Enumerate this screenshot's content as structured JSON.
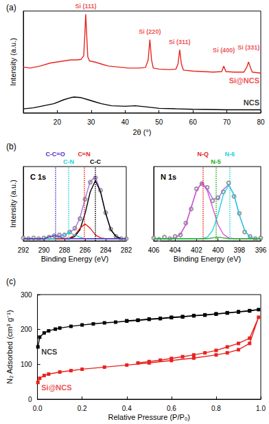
{
  "chart_data": [
    {
      "type": "line",
      "title": "(a)",
      "xlabel": "2θ (°)",
      "ylabel": "Intensity (a.u.)",
      "xlim": [
        10,
        80
      ],
      "xticks": [
        20,
        30,
        40,
        50,
        60,
        70,
        80
      ],
      "ylim": [
        0,
        100
      ],
      "tick_labels": "x",
      "grid": false,
      "series": [
        {
          "name": "Si@NCS",
          "color": "#e8231f",
          "x": [
            10,
            12,
            15,
            18,
            20,
            22,
            24,
            26,
            27,
            27.8,
            28.1,
            28.4,
            28.7,
            29,
            29.5,
            31,
            33,
            35,
            38,
            41,
            44,
            46,
            46.8,
            47.3,
            47.8,
            48.3,
            50,
            53,
            55,
            55.6,
            56.1,
            56.6,
            57.2,
            60,
            63,
            66,
            68.5,
            69.1,
            69.7,
            72,
            75,
            75.9,
            76.4,
            76.9,
            77.5,
            80
          ],
          "values": [
            45,
            44,
            46,
            49,
            50,
            51,
            52,
            52,
            52.5,
            56,
            75,
            97,
            75,
            55,
            51,
            50,
            48,
            46,
            45,
            44,
            44,
            44.5,
            52,
            72,
            52,
            44,
            43,
            42.5,
            43,
            48,
            62,
            48,
            42,
            41,
            40.5,
            40,
            40.5,
            46,
            40.5,
            40,
            40,
            45,
            50,
            45,
            40,
            39
          ]
        },
        {
          "name": "NCS",
          "color": "#000000",
          "x": [
            10,
            13,
            16,
            19,
            22,
            24,
            25,
            27,
            29,
            31,
            33,
            36,
            40,
            43,
            46,
            50,
            55,
            60,
            70,
            80
          ],
          "values": [
            4,
            5,
            7,
            9,
            13,
            15,
            15.5,
            15,
            13,
            11,
            9,
            7,
            6.5,
            7,
            6,
            4.5,
            4,
            3.5,
            3,
            3
          ]
        }
      ],
      "annotations": [
        {
          "text": "Si (111)",
          "x": 28.4,
          "y": 98,
          "color": "#e8231f"
        },
        {
          "text": "Si (220)",
          "x": 47.3,
          "y": 73,
          "color": "#e8231f"
        },
        {
          "text": "Si (311)",
          "x": 56.1,
          "y": 63,
          "color": "#e8231f"
        },
        {
          "text": "Si (400)",
          "x": 69.1,
          "y": 55,
          "color": "#e8231f"
        },
        {
          "text": "Si (331)",
          "x": 76.4,
          "y": 58,
          "color": "#e8231f"
        }
      ]
    },
    {
      "type": "line",
      "title": "(b)",
      "subtitle": "C 1s",
      "xlabel": "Binding Energy (eV)",
      "ylabel": "Intensity (a.u.)",
      "xlim": [
        292,
        282
      ],
      "xticks": [
        292,
        290,
        288,
        286,
        284,
        282
      ],
      "ylim": [
        0,
        100
      ],
      "tick_labels": "x",
      "grid": false,
      "x": [
        292,
        291.5,
        291,
        290.5,
        290,
        289.5,
        289,
        288.5,
        288,
        287.5,
        287,
        286.5,
        286,
        285.5,
        285,
        284.5,
        284,
        283.5,
        283,
        282.5,
        282
      ],
      "series": [
        {
          "type": "scatter",
          "marker": "circle",
          "color": "#808080",
          "values": [
            4,
            3,
            4,
            3,
            4,
            5,
            7,
            8,
            8,
            12,
            17,
            30,
            56,
            79,
            85,
            68,
            38,
            16,
            6,
            3,
            3
          ]
        },
        {
          "type": "line",
          "color": "#a46ee0",
          "values": [
            3,
            3,
            3,
            3,
            3,
            5.5,
            7,
            7.5,
            8,
            12,
            16,
            31,
            57,
            80,
            86,
            67,
            37,
            15,
            6,
            3,
            3
          ]
        },
        {
          "type": "line",
          "color": "#000000",
          "values": [
            3,
            3,
            3,
            3,
            3,
            3,
            3,
            3,
            3,
            3,
            6,
            15,
            37,
            66,
            81,
            66,
            37,
            15,
            6,
            3,
            3
          ]
        },
        {
          "type": "line",
          "color": "#e8231f",
          "values": [
            3,
            3,
            3,
            3,
            3,
            3,
            3,
            3,
            3,
            4,
            8,
            17,
            23,
            17,
            8,
            4,
            3,
            3,
            3,
            3,
            3
          ]
        },
        {
          "type": "line",
          "color": "#22d3e0",
          "values": [
            3,
            3,
            3,
            3,
            3,
            3,
            3,
            5,
            8,
            11,
            8,
            5,
            3,
            3,
            3,
            3,
            3,
            3,
            3,
            3,
            3
          ]
        },
        {
          "type": "line",
          "color": "#5b2fc9",
          "values": [
            3,
            3,
            3,
            3,
            3,
            5.5,
            7,
            5.5,
            3,
            3,
            3,
            3,
            3,
            3,
            3,
            3,
            3,
            3,
            3,
            3,
            3
          ]
        }
      ],
      "markers": [
        {
          "text": "C-C=O",
          "x": 288.9,
          "color": "#5b2fc9"
        },
        {
          "text": "C-N",
          "x": 287.6,
          "color": "#22d3e0"
        },
        {
          "text": "C=N",
          "x": 286.1,
          "color": "#e8231f"
        },
        {
          "text": "C-C",
          "x": 285.0,
          "color": "#000000"
        }
      ]
    },
    {
      "type": "line",
      "subtitle": "N 1s",
      "xlabel": "Binding Energy (eV)",
      "xlim": [
        406,
        396
      ],
      "xticks": [
        406,
        404,
        402,
        400,
        398,
        396
      ],
      "ylim": [
        0,
        100
      ],
      "tick_labels": "x",
      "grid": false,
      "x": [
        406,
        405.5,
        405,
        404.5,
        404,
        403.5,
        403,
        402.5,
        402,
        401.5,
        401,
        400.5,
        400,
        399.5,
        399,
        398.5,
        398,
        397.5,
        397,
        396.5,
        396
      ],
      "series": [
        {
          "type": "scatter",
          "marker": "circle",
          "color": "#808080",
          "values": [
            4,
            2,
            5,
            3,
            6,
            8,
            24,
            43,
            70,
            77,
            72,
            54,
            58,
            66,
            78,
            60,
            37,
            12,
            6,
            3,
            4
          ]
        },
        {
          "type": "line",
          "color": "#a46ee0",
          "values": [
            3,
            3,
            3,
            3,
            4,
            9,
            22,
            45,
            68,
            78,
            70,
            57,
            56,
            69,
            76,
            62,
            35,
            14,
            5,
            3,
            3
          ]
        },
        {
          "type": "line",
          "color": "#d84fd8",
          "values": [
            3,
            3,
            3,
            3,
            4,
            9,
            22,
            45,
            68,
            78,
            68,
            45,
            22,
            9,
            4,
            3,
            3,
            3,
            3,
            3,
            3
          ]
        },
        {
          "type": "line",
          "color": "#22d3e0",
          "values": [
            3,
            3,
            3,
            3,
            3,
            3,
            3,
            3,
            3,
            3,
            5,
            14,
            35,
            62,
            75,
            62,
            35,
            14,
            5,
            3,
            3
          ]
        },
        {
          "type": "line",
          "color": "#20b020",
          "values": [
            3,
            3,
            3,
            3,
            3,
            3,
            3,
            3,
            3,
            3,
            3,
            4,
            5,
            4,
            3,
            3,
            3,
            3,
            3,
            3,
            3
          ]
        }
      ],
      "markers": [
        {
          "text": "N-Q",
          "x": 401.4,
          "color": "#e8231f"
        },
        {
          "text": "N-5",
          "x": 400.2,
          "color": "#20b020"
        },
        {
          "text": "N-6",
          "x": 398.9,
          "color": "#22d3e0"
        }
      ]
    },
    {
      "type": "line",
      "title": "(c)",
      "xlabel": "Relative Pressure (P/P₀)",
      "ylabel": "N₂ Adsorbed (cm³ g⁻¹)",
      "xlim": [
        0,
        1
      ],
      "xticks": [
        {
          "value": 0,
          "label": "0.0"
        },
        0.2,
        0.4,
        0.6,
        0.8,
        {
          "value": 1,
          "label": "1.0"
        }
      ],
      "ylim": [
        0,
        300
      ],
      "yticks": [
        0,
        100,
        200,
        300
      ],
      "grid": false,
      "series": [
        {
          "name": "NCS",
          "color": "#000000",
          "marker": "square",
          "x": [
            0.002,
            0.01,
            0.03,
            0.05,
            0.08,
            0.1,
            0.15,
            0.2,
            0.25,
            0.3,
            0.35,
            0.4,
            0.45,
            0.5,
            0.55,
            0.6,
            0.65,
            0.7,
            0.75,
            0.8,
            0.85,
            0.9,
            0.95,
            0.99,
            0.95,
            0.9,
            0.85,
            0.8,
            0.75,
            0.7,
            0.65,
            0.6,
            0.55,
            0.5,
            0.45,
            0.4
          ],
          "values": [
            150,
            178,
            190,
            196,
            201,
            204,
            209,
            213,
            216,
            219,
            221,
            224,
            226,
            229,
            231,
            234,
            236,
            239,
            241,
            244,
            247,
            250,
            253,
            257,
            254,
            251,
            248,
            245,
            242,
            240,
            237,
            235,
            232,
            230,
            227,
            225
          ]
        },
        {
          "name": "Si@NCS",
          "color": "#e8231f",
          "marker": "square",
          "x": [
            0.002,
            0.01,
            0.03,
            0.05,
            0.1,
            0.15,
            0.2,
            0.3,
            0.4,
            0.5,
            0.6,
            0.7,
            0.8,
            0.85,
            0.9,
            0.95,
            0.99,
            0.95,
            0.9,
            0.85,
            0.8,
            0.75,
            0.7,
            0.65,
            0.6,
            0.55,
            0.5,
            0.45
          ],
          "values": [
            48,
            60,
            68,
            72,
            78,
            82,
            86,
            92,
            98,
            104,
            111,
            118,
            127,
            133,
            142,
            160,
            235,
            175,
            160,
            150,
            140,
            133,
            127,
            122,
            117,
            112,
            108,
            104
          ]
        }
      ]
    }
  ]
}
